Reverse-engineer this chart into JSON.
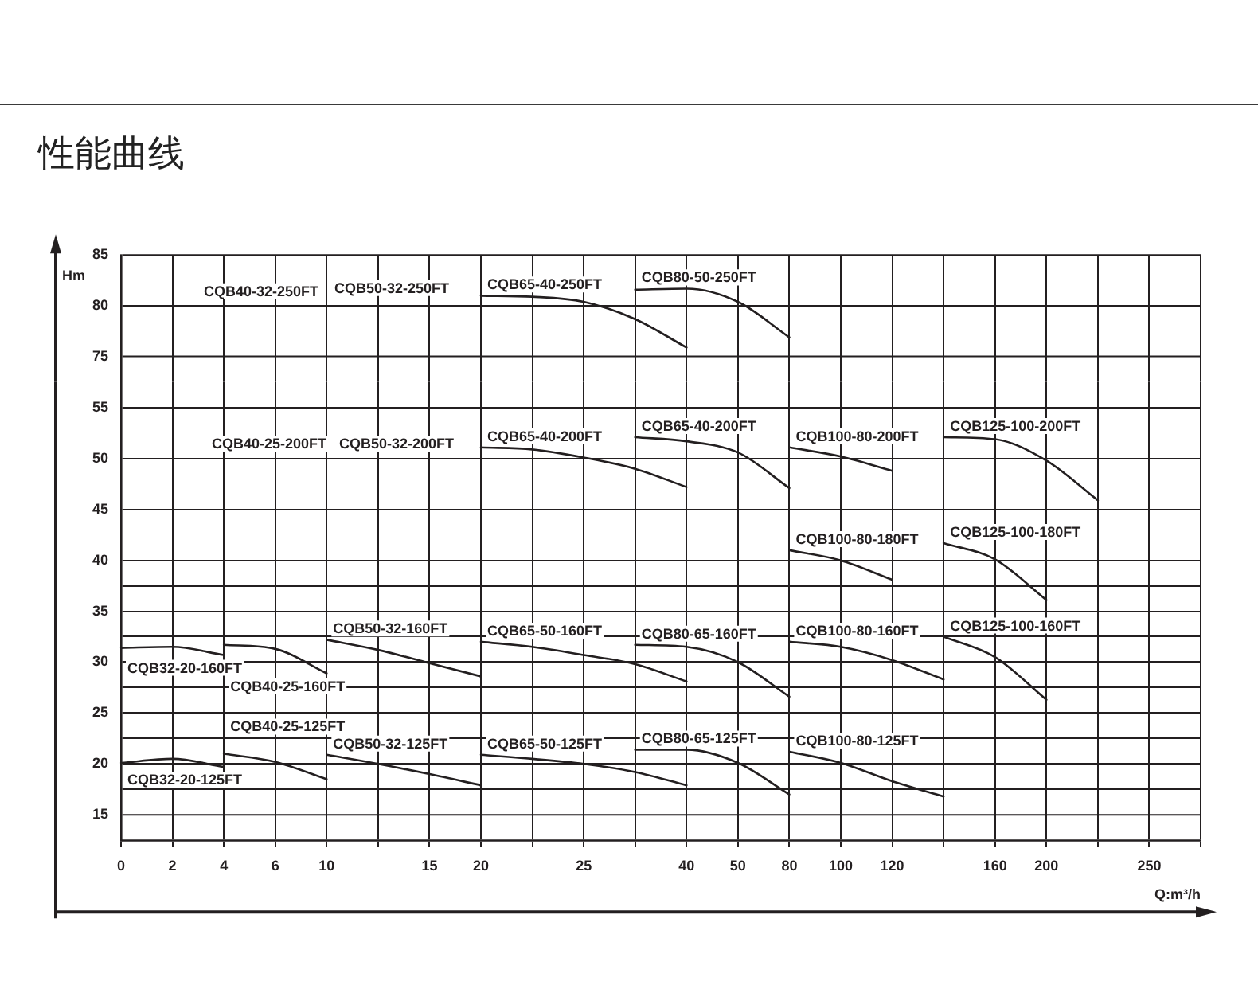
{
  "chart_data": [
    {
      "type": "line",
      "title": "性能曲线",
      "ylabel": "Hm",
      "tick_labels": "y",
      "grid": true,
      "categories": [
        "0",
        "2",
        "4",
        "6",
        "10",
        null,
        "15",
        "20",
        null,
        "25",
        null,
        "40",
        "50",
        "80",
        "100",
        "120",
        null,
        "160",
        "200",
        null,
        "250",
        null
      ],
      "ylim": [
        72.5,
        85
      ],
      "yticks": [
        75,
        80,
        85
      ],
      "annotations": [
        "CQB40-32-250FT",
        "CQB50-32-250FT"
      ],
      "series": [
        {
          "name": "CQB65-40-250FT",
          "color": "#231f20",
          "values": [
            null,
            null,
            null,
            null,
            null,
            null,
            null,
            81.0,
            80.9,
            80.4,
            78.7,
            75.9,
            null,
            null,
            null,
            null,
            null,
            null,
            null,
            null,
            null,
            null
          ]
        },
        {
          "name": "CQB80-50-250FT",
          "color": "#231f20",
          "values": [
            null,
            null,
            null,
            null,
            null,
            null,
            null,
            null,
            null,
            null,
            81.6,
            81.7,
            80.4,
            76.9,
            null,
            null,
            null,
            null,
            null,
            null,
            null,
            null
          ]
        }
      ]
    },
    {
      "type": "line",
      "xlabel": "Q:m³/h",
      "grid": true,
      "categories": [
        "0",
        "2",
        "4",
        "6",
        "10",
        null,
        "15",
        "20",
        null,
        "25",
        null,
        "40",
        "50",
        "80",
        "100",
        "120",
        null,
        "160",
        "200",
        null,
        "250",
        null
      ],
      "ylim": [
        12.5,
        57.5
      ],
      "yticks": [
        15,
        {
          "value": 17.5,
          "label": null
        },
        20,
        {
          "value": 22.5,
          "label": null
        },
        25,
        {
          "value": 27.5,
          "label": null
        },
        30,
        {
          "value": 32.5,
          "label": null
        },
        35,
        {
          "value": 37.5,
          "label": null
        },
        40,
        45,
        50,
        55
      ],
      "annotations": [
        "CQB40-25-200FT",
        "CQB50-32-200FT"
      ],
      "series": [
        {
          "name": "CQB65-40-200FT",
          "color": "#231f20",
          "values": [
            null,
            null,
            null,
            null,
            null,
            null,
            null,
            51.1,
            50.9,
            50.1,
            49.0,
            47.2,
            null,
            null,
            null,
            null,
            null,
            null,
            null,
            null,
            null,
            null
          ]
        },
        {
          "name": "CQB65-40-200FT",
          "color": "#231f20",
          "values": [
            null,
            null,
            null,
            null,
            null,
            null,
            null,
            null,
            null,
            null,
            52.1,
            51.7,
            50.6,
            47.1,
            null,
            null,
            null,
            null,
            null,
            null,
            null,
            null
          ]
        },
        {
          "name": "CQB100-80-200FT",
          "color": "#231f20",
          "values": [
            null,
            null,
            null,
            null,
            null,
            null,
            null,
            null,
            null,
            null,
            null,
            null,
            null,
            51.1,
            50.2,
            48.8,
            null,
            null,
            null,
            null,
            null,
            null
          ]
        },
        {
          "name": "CQB125-100-200FT",
          "color": "#231f20",
          "values": [
            null,
            null,
            null,
            null,
            null,
            null,
            null,
            null,
            null,
            null,
            null,
            null,
            null,
            null,
            null,
            null,
            52.1,
            51.9,
            49.8,
            45.9,
            null,
            null
          ]
        },
        {
          "name": "CQB100-80-180FT",
          "color": "#231f20",
          "values": [
            null,
            null,
            null,
            null,
            null,
            null,
            null,
            null,
            null,
            null,
            null,
            null,
            null,
            41.0,
            40.0,
            38.1,
            null,
            null,
            null,
            null,
            null,
            null
          ]
        },
        {
          "name": "CQB125-100-180FT",
          "color": "#231f20",
          "values": [
            null,
            null,
            null,
            null,
            null,
            null,
            null,
            null,
            null,
            null,
            null,
            null,
            null,
            null,
            null,
            null,
            41.7,
            40.1,
            36.1,
            null,
            null,
            null
          ]
        },
        {
          "name": "CQB32-20-160FT",
          "color": "#231f20",
          "values": [
            31.4,
            31.5,
            30.7,
            null,
            null,
            null,
            null,
            null,
            null,
            null,
            null,
            null,
            null,
            null,
            null,
            null,
            null,
            null,
            null,
            null,
            null,
            null
          ]
        },
        {
          "name": "CQB40-25-160FT",
          "color": "#231f20",
          "values": [
            null,
            null,
            31.7,
            31.3,
            28.9,
            null,
            null,
            null,
            null,
            null,
            null,
            null,
            null,
            null,
            null,
            null,
            null,
            null,
            null,
            null,
            null,
            null
          ]
        },
        {
          "name": "CQB50-32-160FT",
          "color": "#231f20",
          "values": [
            null,
            null,
            null,
            null,
            32.2,
            31.2,
            29.9,
            28.6,
            null,
            null,
            null,
            null,
            null,
            null,
            null,
            null,
            null,
            null,
            null,
            null,
            null,
            null
          ]
        },
        {
          "name": "CQB65-50-160FT",
          "color": "#231f20",
          "values": [
            null,
            null,
            null,
            null,
            null,
            null,
            null,
            32.0,
            31.5,
            30.7,
            29.8,
            28.1,
            null,
            null,
            null,
            null,
            null,
            null,
            null,
            null,
            null,
            null
          ]
        },
        {
          "name": "CQB80-65-160FT",
          "color": "#231f20",
          "values": [
            null,
            null,
            null,
            null,
            null,
            null,
            null,
            null,
            null,
            null,
            31.7,
            31.5,
            30.0,
            26.6,
            null,
            null,
            null,
            null,
            null,
            null,
            null,
            null
          ]
        },
        {
          "name": "CQB100-80-160FT",
          "color": "#231f20",
          "values": [
            null,
            null,
            null,
            null,
            null,
            null,
            null,
            null,
            null,
            null,
            null,
            null,
            null,
            32.0,
            31.5,
            30.2,
            28.3,
            null,
            null,
            null,
            null,
            null
          ]
        },
        {
          "name": "CQB125-100-160FT",
          "color": "#231f20",
          "values": [
            null,
            null,
            null,
            null,
            null,
            null,
            null,
            null,
            null,
            null,
            null,
            null,
            null,
            null,
            null,
            null,
            32.5,
            30.5,
            26.3,
            null,
            null,
            null
          ]
        },
        {
          "name": "CQB32-20-125FT",
          "color": "#231f20",
          "values": [
            20.1,
            20.5,
            19.7,
            null,
            null,
            null,
            null,
            null,
            null,
            null,
            null,
            null,
            null,
            null,
            null,
            null,
            null,
            null,
            null,
            null,
            null,
            null
          ]
        },
        {
          "name": "CQB40-25-125FT",
          "color": "#231f20",
          "values": [
            null,
            null,
            21.0,
            20.2,
            18.5,
            null,
            null,
            null,
            null,
            null,
            null,
            null,
            null,
            null,
            null,
            null,
            null,
            null,
            null,
            null,
            null,
            null
          ]
        },
        {
          "name": "CQB50-32-125FT",
          "color": "#231f20",
          "values": [
            null,
            null,
            null,
            null,
            20.9,
            20.0,
            19.0,
            17.9,
            null,
            null,
            null,
            null,
            null,
            null,
            null,
            null,
            null,
            null,
            null,
            null,
            null,
            null
          ]
        },
        {
          "name": "CQB65-50-125FT",
          "color": "#231f20",
          "values": [
            null,
            null,
            null,
            null,
            null,
            null,
            null,
            20.9,
            20.5,
            20.0,
            19.2,
            17.9,
            null,
            null,
            null,
            null,
            null,
            null,
            null,
            null,
            null,
            null
          ]
        },
        {
          "name": "CQB80-65-125FT",
          "color": "#231f20",
          "values": [
            null,
            null,
            null,
            null,
            null,
            null,
            null,
            null,
            null,
            null,
            21.4,
            21.4,
            20.1,
            17.0,
            null,
            null,
            null,
            null,
            null,
            null,
            null,
            null
          ]
        },
        {
          "name": "CQB100-80-125FT",
          "color": "#231f20",
          "values": [
            null,
            null,
            null,
            null,
            null,
            null,
            null,
            null,
            null,
            null,
            null,
            null,
            null,
            21.2,
            20.1,
            18.3,
            16.8,
            null,
            null,
            null,
            null,
            null
          ]
        }
      ]
    }
  ]
}
